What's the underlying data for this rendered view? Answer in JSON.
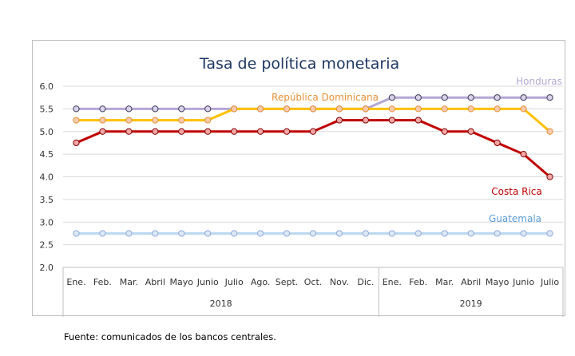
{
  "chart_data": {
    "type": "line",
    "title": "Tasa de política monetaria",
    "categories": [
      "Ene.",
      "Feb.",
      "Mar.",
      "Abril",
      "Mayo",
      "Junio",
      "Julio",
      "Ago.",
      "Sept.",
      "Oct.",
      "Nov.",
      "Dic.",
      "Ene.",
      "Feb.",
      "Mar.",
      "Abril",
      "Mayo",
      "Junio",
      "Julio"
    ],
    "groups": [
      {
        "label": "2018",
        "count": 12
      },
      {
        "label": "2019",
        "count": 7
      }
    ],
    "ylim": [
      2.0,
      6.0
    ],
    "yticks": [
      "2.0",
      "2.5",
      "3.0",
      "3.5",
      "4.0",
      "4.5",
      "5.0",
      "5.5",
      "6.0"
    ],
    "grid": true,
    "legend": "inline labels",
    "series": [
      {
        "name": "Honduras",
        "color": "#b4a7d6",
        "marker_fill": "#d9d2e9",
        "marker_stroke": "#3d3a5c",
        "values": [
          5.5,
          5.5,
          5.5,
          5.5,
          5.5,
          5.5,
          5.5,
          5.5,
          5.5,
          5.5,
          5.5,
          5.5,
          5.75,
          5.75,
          5.75,
          5.75,
          5.75,
          5.75,
          5.75
        ]
      },
      {
        "name": "República Dominicana",
        "color": "#ffc000",
        "marker_fill": "#f8cbad",
        "marker_stroke": "#e69138",
        "values": [
          5.25,
          5.25,
          5.25,
          5.25,
          5.25,
          5.25,
          5.5,
          5.5,
          5.5,
          5.5,
          5.5,
          5.5,
          5.5,
          5.5,
          5.5,
          5.5,
          5.5,
          5.5,
          5.0
        ]
      },
      {
        "name": "Costa Rica",
        "color": "#c00000",
        "marker_fill": "#f4a6a6",
        "marker_stroke": "#7f0000",
        "values": [
          4.75,
          5.0,
          5.0,
          5.0,
          5.0,
          5.0,
          5.0,
          5.0,
          5.0,
          5.0,
          5.25,
          5.25,
          5.25,
          5.25,
          5.0,
          5.0,
          4.75,
          4.5,
          4.0
        ]
      },
      {
        "name": "Guatemala",
        "color": "#bdd7ee",
        "marker_fill": "#dde9f6",
        "marker_stroke": "#8eaadb",
        "values": [
          2.75,
          2.75,
          2.75,
          2.75,
          2.75,
          2.75,
          2.75,
          2.75,
          2.75,
          2.75,
          2.75,
          2.75,
          2.75,
          2.75,
          2.75,
          2.75,
          2.75,
          2.75,
          2.75
        ]
      }
    ],
    "label_colors": {
      "Honduras": "#b4a7d6",
      "República Dominicana": "#e69138",
      "Costa Rica": "#c00000",
      "Guatemala": "#5b9bd5"
    }
  },
  "source_note": "Fuente: comunicados de los bancos centrales."
}
